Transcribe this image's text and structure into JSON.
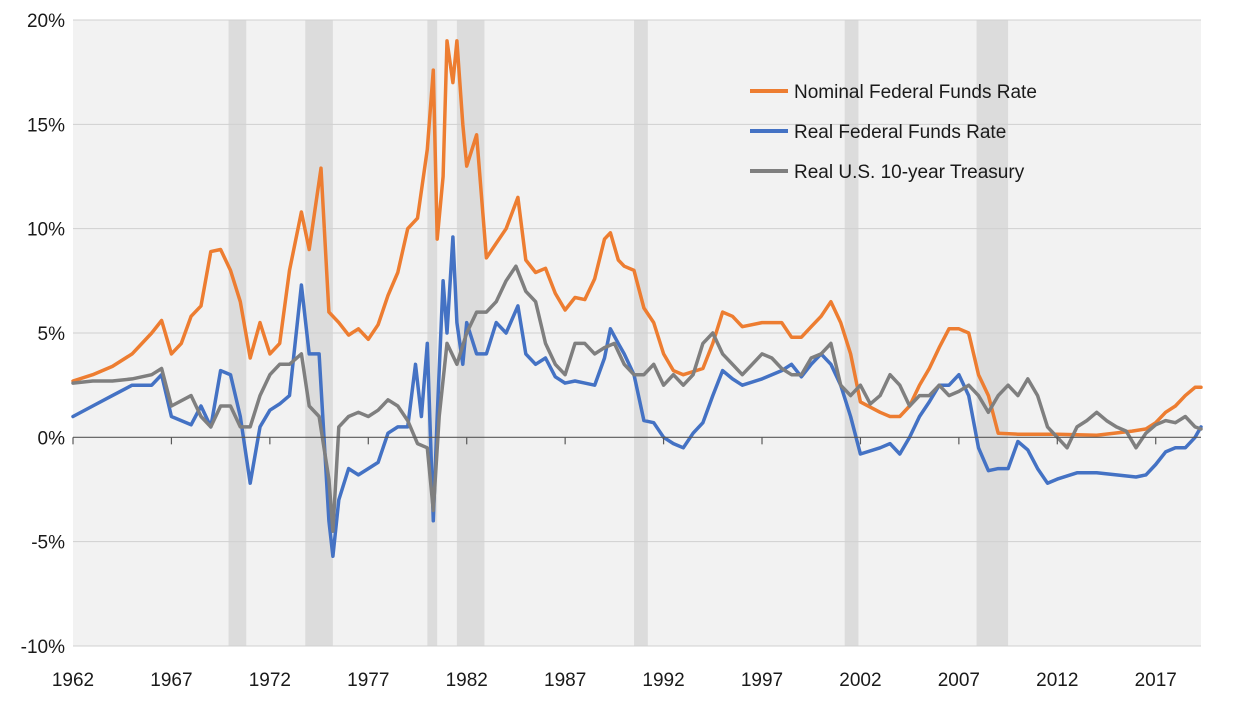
{
  "chart_data": {
    "type": "line",
    "title": "",
    "xlabel": "",
    "ylabel": "",
    "xlim": [
      1962.0,
      2019.3
    ],
    "ylim": [
      -10,
      20
    ],
    "x_ticks": [
      1962,
      1967,
      1972,
      1977,
      1982,
      1987,
      1992,
      1997,
      2002,
      2007,
      2012,
      2017
    ],
    "x_tick_labels": [
      "1962",
      "1967",
      "1972",
      "1977",
      "1982",
      "1987",
      "1992",
      "1997",
      "2002",
      "2007",
      "2012",
      "2017"
    ],
    "y_ticks": [
      -10,
      -5,
      0,
      5,
      10,
      15,
      20
    ],
    "y_tick_labels": [
      "-10%",
      "-5%",
      "0%",
      "5%",
      "10%",
      "15%",
      "20%"
    ],
    "grid": "horizontal",
    "legend": "top-right",
    "background": "#f2f2f2",
    "recessions": [
      [
        1969.9,
        1970.8
      ],
      [
        1973.8,
        1975.2
      ],
      [
        1980.0,
        1980.5
      ],
      [
        1981.5,
        1982.9
      ],
      [
        1990.5,
        1991.2
      ],
      [
        2001.2,
        2001.9
      ],
      [
        2007.9,
        2009.5
      ]
    ],
    "series": [
      {
        "name": "Nominal Federal Funds Rate",
        "color": "#ed7d31",
        "x": [
          1962.0,
          1963.0,
          1964.0,
          1965.0,
          1966.0,
          1966.5,
          1967.0,
          1967.5,
          1968.0,
          1968.5,
          1969.0,
          1969.5,
          1970.0,
          1970.5,
          1971.0,
          1971.5,
          1972.0,
          1972.5,
          1973.0,
          1973.6,
          1974.0,
          1974.6,
          1975.0,
          1975.5,
          1976.0,
          1976.5,
          1977.0,
          1977.5,
          1978.0,
          1978.5,
          1979.0,
          1979.5,
          1980.0,
          1980.3,
          1980.5,
          1980.8,
          1981.0,
          1981.3,
          1981.5,
          1981.8,
          1982.0,
          1982.5,
          1983.0,
          1983.5,
          1984.0,
          1984.6,
          1985.0,
          1985.5,
          1986.0,
          1986.5,
          1987.0,
          1987.5,
          1988.0,
          1988.5,
          1989.0,
          1989.3,
          1989.7,
          1990.0,
          1990.5,
          1991.0,
          1991.5,
          1992.0,
          1992.5,
          1993.0,
          1994.0,
          1994.5,
          1995.0,
          1995.5,
          1996.0,
          1997.0,
          1998.0,
          1998.5,
          1999.0,
          1999.5,
          2000.0,
          2000.5,
          2001.0,
          2001.5,
          2002.0,
          2003.0,
          2003.5,
          2004.0,
          2004.5,
          2005.0,
          2005.5,
          2006.0,
          2006.5,
          2007.0,
          2007.5,
          2008.0,
          2008.5,
          2009.0,
          2010.0,
          2012.0,
          2014.0,
          2015.8,
          2016.5,
          2017.0,
          2017.5,
          2018.0,
          2018.5,
          2019.0,
          2019.3
        ],
        "y": [
          2.7,
          3.0,
          3.4,
          4.0,
          5.0,
          5.6,
          4.0,
          4.5,
          5.8,
          6.3,
          8.9,
          9.0,
          8.0,
          6.5,
          3.8,
          5.5,
          4.0,
          4.5,
          8.0,
          10.8,
          9.0,
          12.9,
          6.0,
          5.5,
          4.9,
          5.2,
          4.7,
          5.4,
          6.8,
          7.9,
          10.0,
          10.5,
          13.8,
          17.6,
          9.5,
          12.5,
          19.0,
          17.0,
          19.0,
          15.0,
          13.0,
          14.5,
          8.6,
          9.3,
          10.0,
          11.5,
          8.5,
          7.9,
          8.1,
          6.9,
          6.1,
          6.7,
          6.6,
          7.6,
          9.5,
          9.8,
          8.5,
          8.2,
          8.0,
          6.2,
          5.5,
          4.0,
          3.2,
          3.0,
          3.3,
          4.5,
          6.0,
          5.8,
          5.3,
          5.5,
          5.5,
          4.8,
          4.8,
          5.3,
          5.8,
          6.5,
          5.5,
          4.0,
          1.7,
          1.2,
          1.0,
          1.0,
          1.5,
          2.5,
          3.3,
          4.3,
          5.2,
          5.2,
          5.0,
          3.0,
          2.0,
          0.2,
          0.15,
          0.15,
          0.1,
          0.3,
          0.4,
          0.7,
          1.2,
          1.5,
          2.0,
          2.4,
          2.4
        ]
      },
      {
        "name": "Real Federal Funds Rate",
        "color": "#4472c4",
        "x": [
          1962.0,
          1963.0,
          1964.0,
          1965.0,
          1966.0,
          1966.5,
          1967.0,
          1968.0,
          1968.5,
          1969.0,
          1969.5,
          1970.0,
          1970.5,
          1971.0,
          1971.5,
          1972.0,
          1972.5,
          1973.0,
          1973.6,
          1974.0,
          1974.5,
          1975.0,
          1975.2,
          1975.5,
          1976.0,
          1976.5,
          1977.0,
          1977.5,
          1978.0,
          1978.5,
          1979.0,
          1979.4,
          1979.7,
          1980.0,
          1980.3,
          1980.5,
          1980.8,
          1981.0,
          1981.3,
          1981.5,
          1981.8,
          1982.0,
          1982.5,
          1983.0,
          1983.5,
          1984.0,
          1984.6,
          1985.0,
          1985.5,
          1986.0,
          1986.5,
          1987.0,
          1987.5,
          1988.0,
          1988.5,
          1989.0,
          1989.3,
          1989.7,
          1990.0,
          1990.5,
          1991.0,
          1991.5,
          1992.0,
          1992.5,
          1993.0,
          1993.5,
          1994.0,
          1994.5,
          1995.0,
          1995.5,
          1996.0,
          1997.0,
          1998.0,
          1998.5,
          1999.0,
          1999.5,
          2000.0,
          2000.5,
          2001.0,
          2001.5,
          2002.0,
          2003.0,
          2003.5,
          2004.0,
          2004.5,
          2005.0,
          2005.5,
          2006.0,
          2006.5,
          2007.0,
          2007.5,
          2008.0,
          2008.5,
          2009.0,
          2009.5,
          2010.0,
          2010.5,
          2011.0,
          2011.5,
          2012.0,
          2013.0,
          2014.0,
          2015.0,
          2016.0,
          2016.5,
          2017.0,
          2017.5,
          2018.0,
          2018.5,
          2019.0,
          2019.3
        ],
        "y": [
          1.0,
          1.5,
          2.0,
          2.5,
          2.5,
          3.0,
          1.0,
          0.6,
          1.5,
          0.5,
          3.2,
          3.0,
          1.0,
          -2.2,
          0.5,
          1.3,
          1.6,
          2.0,
          7.3,
          4.0,
          4.0,
          -4.0,
          -5.7,
          -3.0,
          -1.5,
          -1.8,
          -1.5,
          -1.2,
          0.2,
          0.5,
          0.5,
          3.5,
          1.0,
          4.5,
          -4.0,
          1.0,
          7.5,
          5.0,
          9.6,
          5.5,
          3.5,
          5.5,
          4.0,
          4.0,
          5.5,
          5.0,
          6.3,
          4.0,
          3.5,
          3.8,
          2.9,
          2.6,
          2.7,
          2.6,
          2.5,
          3.8,
          5.2,
          4.5,
          4.0,
          3.0,
          0.8,
          0.7,
          0.0,
          -0.3,
          -0.5,
          0.2,
          0.7,
          2.0,
          3.2,
          2.8,
          2.5,
          2.8,
          3.2,
          3.5,
          2.9,
          3.5,
          4.0,
          3.5,
          2.5,
          1.0,
          -0.8,
          -0.5,
          -0.3,
          -0.8,
          0.0,
          1.0,
          1.7,
          2.5,
          2.5,
          3.0,
          2.0,
          -0.5,
          -1.6,
          -1.5,
          -1.5,
          -0.2,
          -0.6,
          -1.5,
          -2.2,
          -2.0,
          -1.7,
          -1.7,
          -1.8,
          -1.9,
          -1.8,
          -1.3,
          -0.7,
          -0.5,
          -0.5,
          0.0,
          0.5
        ]
      },
      {
        "name": "Real U.S. 10-year Treasury",
        "color": "#7f7f7f",
        "x": [
          1962.0,
          1963.0,
          1964.0,
          1965.0,
          1966.0,
          1966.5,
          1967.0,
          1968.0,
          1968.5,
          1969.0,
          1969.5,
          1970.0,
          1970.5,
          1971.0,
          1971.5,
          1972.0,
          1972.5,
          1973.0,
          1973.6,
          1974.0,
          1974.5,
          1975.0,
          1975.2,
          1975.5,
          1976.0,
          1976.5,
          1977.0,
          1977.5,
          1978.0,
          1978.5,
          1979.0,
          1979.5,
          1980.0,
          1980.3,
          1980.6,
          1981.0,
          1981.5,
          1982.0,
          1982.5,
          1983.0,
          1983.5,
          1984.0,
          1984.5,
          1985.0,
          1985.5,
          1986.0,
          1986.5,
          1987.0,
          1987.5,
          1988.0,
          1988.5,
          1989.0,
          1989.5,
          1990.0,
          1990.5,
          1991.0,
          1991.5,
          1992.0,
          1992.5,
          1993.0,
          1993.5,
          1994.0,
          1994.5,
          1995.0,
          1995.5,
          1996.0,
          1996.5,
          1997.0,
          1997.5,
          1998.0,
          1998.5,
          1999.0,
          1999.5,
          2000.0,
          2000.5,
          2001.0,
          2001.5,
          2002.0,
          2002.5,
          2003.0,
          2003.5,
          2004.0,
          2004.5,
          2005.0,
          2005.5,
          2006.0,
          2006.5,
          2007.0,
          2007.5,
          2008.0,
          2008.5,
          2009.0,
          2009.5,
          2010.0,
          2010.5,
          2011.0,
          2011.5,
          2012.0,
          2012.5,
          2013.0,
          2013.5,
          2014.0,
          2014.5,
          2015.0,
          2015.5,
          2016.0,
          2016.5,
          2017.0,
          2017.5,
          2018.0,
          2018.5,
          2019.0,
          2019.3
        ],
        "y": [
          2.6,
          2.7,
          2.7,
          2.8,
          3.0,
          3.3,
          1.5,
          2.0,
          1.0,
          0.5,
          1.5,
          1.5,
          0.5,
          0.5,
          2.0,
          3.0,
          3.5,
          3.5,
          4.0,
          1.5,
          1.0,
          -2.0,
          -4.5,
          0.5,
          1.0,
          1.2,
          1.0,
          1.3,
          1.8,
          1.5,
          0.8,
          -0.3,
          -0.5,
          -3.5,
          1.0,
          4.5,
          3.5,
          5.0,
          6.0,
          6.0,
          6.5,
          7.5,
          8.2,
          7.0,
          6.5,
          4.5,
          3.5,
          3.0,
          4.5,
          4.5,
          4.0,
          4.3,
          4.5,
          3.5,
          3.0,
          3.0,
          3.5,
          2.5,
          3.0,
          2.5,
          3.0,
          4.5,
          5.0,
          4.0,
          3.5,
          3.0,
          3.5,
          4.0,
          3.8,
          3.3,
          3.0,
          3.0,
          3.8,
          4.0,
          4.5,
          2.5,
          2.0,
          2.5,
          1.6,
          2.0,
          3.0,
          2.5,
          1.5,
          2.0,
          2.0,
          2.5,
          2.0,
          2.2,
          2.5,
          2.0,
          1.2,
          2.0,
          2.5,
          2.0,
          2.8,
          2.0,
          0.5,
          0.0,
          -0.5,
          0.5,
          0.8,
          1.2,
          0.8,
          0.5,
          0.3,
          -0.5,
          0.2,
          0.6,
          0.8,
          0.7,
          1.0,
          0.5,
          0.4
        ]
      }
    ]
  }
}
